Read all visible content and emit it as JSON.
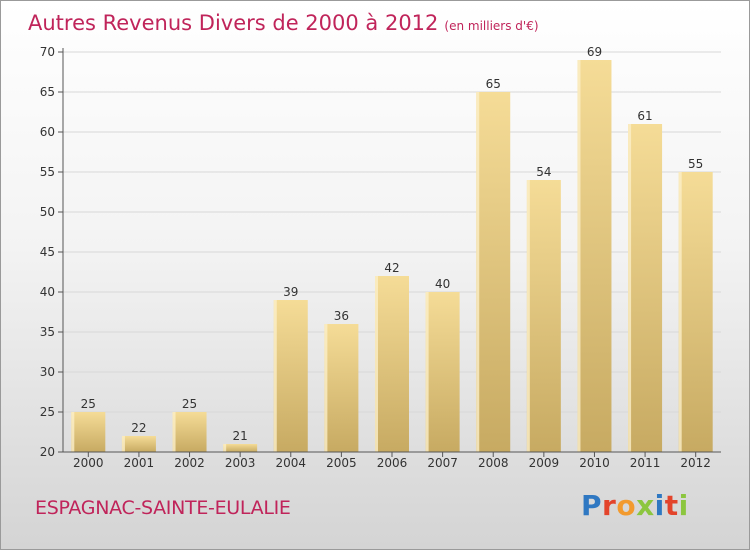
{
  "title": "Autres Revenus Divers de 2000 à 2012",
  "subtitle": "(en milliers d'€)",
  "location": "ESPAGNAC-SAINTE-EULALIE",
  "logo": {
    "text": "Proxiti",
    "colors": [
      "#2f78c2",
      "#e3442b",
      "#f29a2e",
      "#8cc63f",
      "#2f78c2",
      "#e3442b",
      "#8cc63f"
    ]
  },
  "colors": {
    "title": "#c0245a",
    "bar_light": "#f5dc97",
    "bar_dark": "#c7aa62",
    "bar_side": "#fbefc8",
    "axis": "#555555",
    "grid": "#d8d8d8"
  },
  "chart_data": {
    "type": "bar",
    "title": "Autres Revenus Divers de 2000 à 2012",
    "subtitle": "(en milliers d'€)",
    "categories": [
      "2000",
      "2001",
      "2002",
      "2003",
      "2004",
      "2005",
      "2006",
      "2007",
      "2008",
      "2009",
      "2010",
      "2011",
      "2012"
    ],
    "values": [
      25,
      22,
      25,
      21,
      39,
      36,
      42,
      40,
      65,
      54,
      69,
      61,
      55
    ],
    "ylim": [
      20,
      70
    ],
    "yticks": [
      20,
      25,
      30,
      35,
      40,
      45,
      50,
      55,
      60,
      65,
      70
    ],
    "grid": true,
    "xlabel": "",
    "ylabel": ""
  }
}
